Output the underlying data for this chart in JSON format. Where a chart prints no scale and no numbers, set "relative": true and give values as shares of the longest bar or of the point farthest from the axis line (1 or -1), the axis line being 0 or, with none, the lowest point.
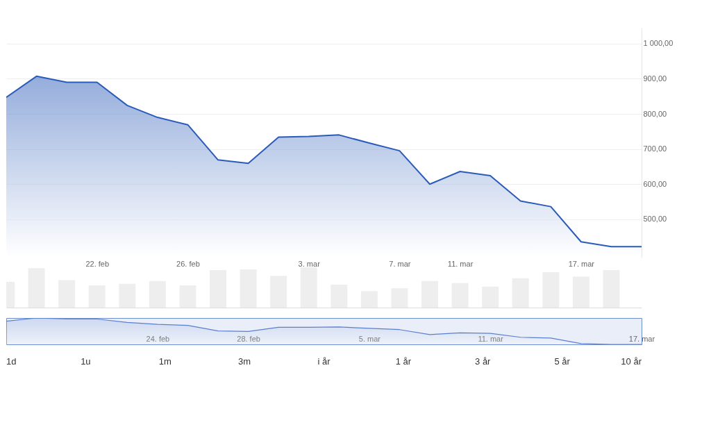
{
  "chart_data": [
    {
      "type": "area",
      "categories": [
        null,
        null,
        null,
        "22. feb",
        null,
        null,
        "26. feb",
        null,
        null,
        null,
        "3. mar",
        null,
        null,
        "7. mar",
        null,
        "11. mar",
        null,
        null,
        null,
        "17. mar",
        null,
        null
      ],
      "series": [
        {
          "color": "#2a5bb8",
          "values": [
            847,
            907,
            890,
            890,
            824,
            790,
            769,
            669,
            659,
            734,
            736,
            740,
            717,
            695,
            600,
            636,
            624,
            552,
            536,
            436,
            422,
            422
          ]
        }
      ],
      "ylim": [
        393,
        1045
      ],
      "yticks": [
        {
          "value": 500,
          "label": "500,00"
        },
        {
          "value": 600,
          "label": "600,00"
        },
        {
          "value": 700,
          "label": "700,00"
        },
        {
          "value": 800,
          "label": "800,00"
        },
        {
          "value": 900,
          "label": "900,00"
        },
        {
          "value": 1000,
          "label": "1 000,00"
        }
      ],
      "grid": "y"
    },
    {
      "type": "bar",
      "relative": true,
      "categories": [
        null,
        null,
        null,
        null,
        null,
        null,
        null,
        null,
        null,
        null,
        null,
        null,
        null,
        null,
        null,
        null,
        null,
        null,
        null,
        null,
        null,
        null
      ],
      "series": [
        {
          "color": "#e3e3e3",
          "values": [
            0.64,
            0.98,
            0.68,
            0.55,
            0.59,
            0.66,
            0.55,
            0.93,
            0.95,
            0.79,
            1,
            0.57,
            0.41,
            0.48,
            0.66,
            0.61,
            0.52,
            0.73,
            0.88,
            0.77,
            0.93,
            null
          ]
        }
      ]
    },
    {
      "type": "area",
      "relative": true,
      "categories": [
        null,
        null,
        null,
        null,
        null,
        "24. feb",
        null,
        null,
        "28. feb",
        null,
        null,
        null,
        "5. mar",
        null,
        null,
        null,
        "11. mar",
        null,
        null,
        null,
        null,
        "17. mar"
      ],
      "series": [
        {
          "color": "#5b7fd0",
          "values": [
            0.88,
            1,
            0.96,
            0.96,
            0.83,
            0.76,
            0.72,
            0.51,
            0.49,
            0.65,
            0.65,
            0.66,
            0.61,
            0.56,
            0.37,
            0.44,
            0.42,
            0.27,
            0.24,
            0.03,
            0,
            0
          ]
        }
      ],
      "annotations": [
        "1d",
        "1u",
        "1m",
        "3m",
        "i år",
        "1 år",
        "3 år",
        "5 år",
        "10 år"
      ]
    }
  ]
}
